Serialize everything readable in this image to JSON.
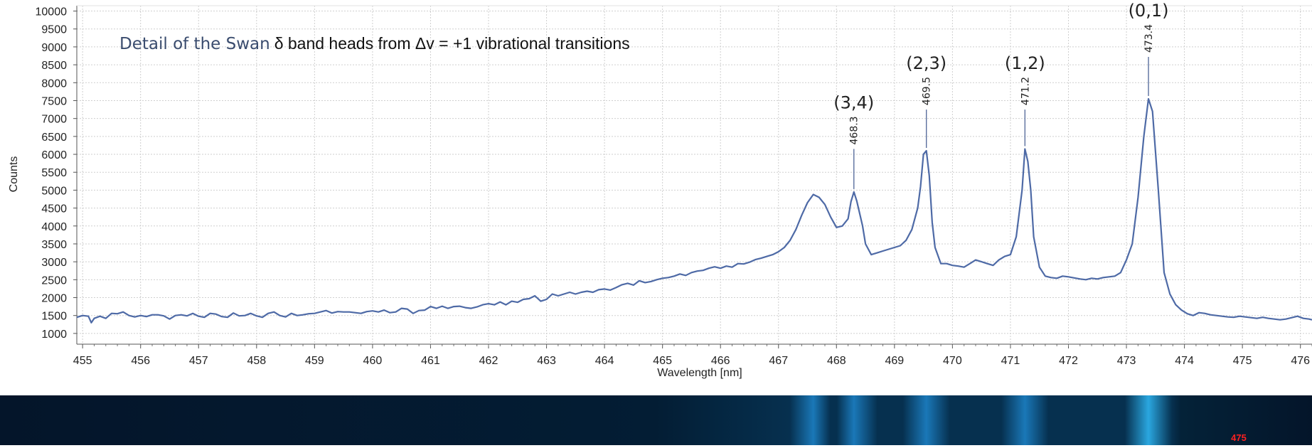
{
  "chart_data": {
    "type": "line",
    "title_part1": "Detail of the Swan",
    "title_part2": "δ band heads from Δv = +1 vibrational transitions",
    "xlabel": "Wavelength [nm]",
    "ylabel": "Counts",
    "xlim": [
      454.9,
      476.2
    ],
    "ylim": [
      700,
      10150
    ],
    "xticks": [
      455,
      456,
      457,
      458,
      459,
      460,
      461,
      462,
      463,
      464,
      465,
      466,
      467,
      468,
      469,
      470,
      471,
      472,
      473,
      474,
      475,
      476
    ],
    "yticks": [
      1000,
      1500,
      2000,
      2500,
      3000,
      3500,
      4000,
      4500,
      5000,
      5500,
      6000,
      6500,
      7000,
      7500,
      8000,
      8500,
      9000,
      9500,
      10000
    ],
    "grid": true,
    "line_color": "#4e6aa6",
    "series": [
      {
        "points": [
          [
            454.9,
            1450
          ],
          [
            455.0,
            1500
          ],
          [
            455.1,
            1480
          ],
          [
            455.15,
            1300
          ],
          [
            455.2,
            1420
          ],
          [
            455.3,
            1480
          ],
          [
            455.4,
            1420
          ],
          [
            455.5,
            1560
          ],
          [
            455.6,
            1550
          ],
          [
            455.7,
            1600
          ],
          [
            455.8,
            1500
          ],
          [
            455.9,
            1460
          ],
          [
            456.0,
            1500
          ],
          [
            456.1,
            1470
          ],
          [
            456.2,
            1520
          ],
          [
            456.3,
            1520
          ],
          [
            456.4,
            1490
          ],
          [
            456.5,
            1400
          ],
          [
            456.6,
            1500
          ],
          [
            456.7,
            1520
          ],
          [
            456.8,
            1490
          ],
          [
            456.9,
            1560
          ],
          [
            457.0,
            1480
          ],
          [
            457.1,
            1450
          ],
          [
            457.2,
            1560
          ],
          [
            457.3,
            1540
          ],
          [
            457.4,
            1470
          ],
          [
            457.5,
            1450
          ],
          [
            457.6,
            1570
          ],
          [
            457.7,
            1490
          ],
          [
            457.8,
            1500
          ],
          [
            457.9,
            1560
          ],
          [
            458.0,
            1490
          ],
          [
            458.1,
            1450
          ],
          [
            458.2,
            1560
          ],
          [
            458.3,
            1600
          ],
          [
            458.4,
            1500
          ],
          [
            458.5,
            1460
          ],
          [
            458.6,
            1560
          ],
          [
            458.7,
            1500
          ],
          [
            458.8,
            1520
          ],
          [
            458.9,
            1550
          ],
          [
            459.0,
            1560
          ],
          [
            459.1,
            1600
          ],
          [
            459.2,
            1640
          ],
          [
            459.3,
            1570
          ],
          [
            459.4,
            1610
          ],
          [
            459.5,
            1600
          ],
          [
            459.6,
            1600
          ],
          [
            459.7,
            1580
          ],
          [
            459.8,
            1560
          ],
          [
            459.9,
            1610
          ],
          [
            460.0,
            1630
          ],
          [
            460.1,
            1600
          ],
          [
            460.2,
            1650
          ],
          [
            460.3,
            1580
          ],
          [
            460.4,
            1600
          ],
          [
            460.5,
            1700
          ],
          [
            460.6,
            1680
          ],
          [
            460.7,
            1560
          ],
          [
            460.8,
            1640
          ],
          [
            460.9,
            1650
          ],
          [
            461.0,
            1750
          ],
          [
            461.1,
            1700
          ],
          [
            461.2,
            1760
          ],
          [
            461.3,
            1700
          ],
          [
            461.4,
            1750
          ],
          [
            461.5,
            1760
          ],
          [
            461.6,
            1720
          ],
          [
            461.7,
            1700
          ],
          [
            461.8,
            1740
          ],
          [
            461.9,
            1800
          ],
          [
            462.0,
            1830
          ],
          [
            462.1,
            1800
          ],
          [
            462.2,
            1880
          ],
          [
            462.3,
            1800
          ],
          [
            462.4,
            1900
          ],
          [
            462.5,
            1870
          ],
          [
            462.6,
            1950
          ],
          [
            462.7,
            1970
          ],
          [
            462.8,
            2050
          ],
          [
            462.9,
            1900
          ],
          [
            463.0,
            1950
          ],
          [
            463.1,
            2100
          ],
          [
            463.2,
            2050
          ],
          [
            463.3,
            2100
          ],
          [
            463.4,
            2150
          ],
          [
            463.5,
            2100
          ],
          [
            463.6,
            2150
          ],
          [
            463.7,
            2180
          ],
          [
            463.8,
            2150
          ],
          [
            463.9,
            2220
          ],
          [
            464.0,
            2240
          ],
          [
            464.1,
            2210
          ],
          [
            464.2,
            2280
          ],
          [
            464.3,
            2360
          ],
          [
            464.4,
            2400
          ],
          [
            464.5,
            2350
          ],
          [
            464.6,
            2470
          ],
          [
            464.7,
            2420
          ],
          [
            464.8,
            2450
          ],
          [
            464.9,
            2500
          ],
          [
            465.0,
            2540
          ],
          [
            465.1,
            2560
          ],
          [
            465.2,
            2600
          ],
          [
            465.3,
            2660
          ],
          [
            465.4,
            2620
          ],
          [
            465.5,
            2700
          ],
          [
            465.6,
            2740
          ],
          [
            465.7,
            2760
          ],
          [
            465.8,
            2820
          ],
          [
            465.9,
            2860
          ],
          [
            466.0,
            2820
          ],
          [
            466.1,
            2880
          ],
          [
            466.2,
            2850
          ],
          [
            466.3,
            2950
          ],
          [
            466.4,
            2940
          ],
          [
            466.5,
            2990
          ],
          [
            466.6,
            3060
          ],
          [
            466.7,
            3100
          ],
          [
            466.8,
            3150
          ],
          [
            466.9,
            3200
          ],
          [
            467.0,
            3280
          ],
          [
            467.1,
            3400
          ],
          [
            467.2,
            3600
          ],
          [
            467.3,
            3900
          ],
          [
            467.4,
            4300
          ],
          [
            467.5,
            4650
          ],
          [
            467.6,
            4880
          ],
          [
            467.7,
            4800
          ],
          [
            467.8,
            4600
          ],
          [
            467.9,
            4250
          ],
          [
            468.0,
            3960
          ],
          [
            468.1,
            4000
          ],
          [
            468.2,
            4200
          ],
          [
            468.25,
            4680
          ],
          [
            468.3,
            4950
          ],
          [
            468.35,
            4700
          ],
          [
            468.45,
            4000
          ],
          [
            468.5,
            3500
          ],
          [
            468.6,
            3200
          ],
          [
            468.7,
            3250
          ],
          [
            468.8,
            3300
          ],
          [
            468.9,
            3350
          ],
          [
            469.0,
            3400
          ],
          [
            469.1,
            3450
          ],
          [
            469.2,
            3600
          ],
          [
            469.3,
            3900
          ],
          [
            469.4,
            4500
          ],
          [
            469.45,
            5100
          ],
          [
            469.5,
            6000
          ],
          [
            469.55,
            6100
          ],
          [
            469.6,
            5400
          ],
          [
            469.65,
            4100
          ],
          [
            469.7,
            3400
          ],
          [
            469.8,
            2950
          ],
          [
            469.9,
            2950
          ],
          [
            470.0,
            2900
          ],
          [
            470.1,
            2880
          ],
          [
            470.2,
            2850
          ],
          [
            470.3,
            2950
          ],
          [
            470.4,
            3050
          ],
          [
            470.5,
            3000
          ],
          [
            470.6,
            2950
          ],
          [
            470.7,
            2900
          ],
          [
            470.8,
            3050
          ],
          [
            470.9,
            3150
          ],
          [
            471.0,
            3200
          ],
          [
            471.1,
            3700
          ],
          [
            471.2,
            5000
          ],
          [
            471.25,
            6150
          ],
          [
            471.3,
            5800
          ],
          [
            471.35,
            5000
          ],
          [
            471.4,
            3700
          ],
          [
            471.5,
            2850
          ],
          [
            471.6,
            2600
          ],
          [
            471.7,
            2560
          ],
          [
            471.8,
            2540
          ],
          [
            471.9,
            2600
          ],
          [
            472.0,
            2580
          ],
          [
            472.1,
            2550
          ],
          [
            472.2,
            2520
          ],
          [
            472.3,
            2500
          ],
          [
            472.4,
            2540
          ],
          [
            472.5,
            2520
          ],
          [
            472.6,
            2560
          ],
          [
            472.7,
            2580
          ],
          [
            472.8,
            2600
          ],
          [
            472.9,
            2700
          ],
          [
            473.0,
            3050
          ],
          [
            473.1,
            3500
          ],
          [
            473.2,
            4800
          ],
          [
            473.3,
            6500
          ],
          [
            473.38,
            7550
          ],
          [
            473.45,
            7200
          ],
          [
            473.55,
            5000
          ],
          [
            473.65,
            2700
          ],
          [
            473.75,
            2100
          ],
          [
            473.85,
            1800
          ],
          [
            473.95,
            1650
          ],
          [
            474.05,
            1550
          ],
          [
            474.15,
            1500
          ],
          [
            474.25,
            1580
          ],
          [
            474.35,
            1560
          ],
          [
            474.45,
            1520
          ],
          [
            474.55,
            1500
          ],
          [
            474.65,
            1480
          ],
          [
            474.75,
            1460
          ],
          [
            474.85,
            1450
          ],
          [
            474.95,
            1480
          ],
          [
            475.05,
            1460
          ],
          [
            475.15,
            1440
          ],
          [
            475.25,
            1420
          ],
          [
            475.35,
            1450
          ],
          [
            475.45,
            1420
          ],
          [
            475.55,
            1400
          ],
          [
            475.65,
            1380
          ],
          [
            475.75,
            1400
          ],
          [
            475.85,
            1440
          ],
          [
            475.95,
            1480
          ],
          [
            476.05,
            1420
          ],
          [
            476.15,
            1400
          ],
          [
            476.2,
            1380
          ]
        ]
      }
    ],
    "annotations": [
      {
        "band": "(3,4)",
        "peak": "468.3",
        "x": 468.3,
        "y": 4950,
        "label_top": 6150
      },
      {
        "band": "(2,3)",
        "peak": "469.5",
        "x": 469.55,
        "y": 6100,
        "label_top": 7250
      },
      {
        "band": "(1,2)",
        "peak": "471.2",
        "x": 471.25,
        "y": 6150,
        "label_top": 7250
      },
      {
        "band": "(0,1)",
        "peak": "473.4",
        "x": 473.38,
        "y": 7550,
        "label_top": 8720
      }
    ]
  },
  "spectrum_strip": {
    "label": "475",
    "label_color": "#ff2020",
    "base_color": "#04152a",
    "bright_bands_nm": [
      467.6,
      468.3,
      469.55,
      471.25,
      473.38
    ]
  }
}
